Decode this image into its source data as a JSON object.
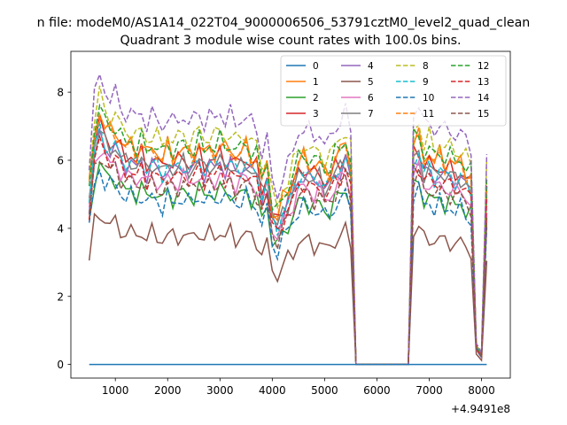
{
  "figure": {
    "suptitle": "n file: modeM0/AS1A14_022T04_9000006506_53791cztM0_level2_quad_clean",
    "title": "Quadrant 3 module wise count rates with 100.0s bins.",
    "x_offset_text": "+4.9491e8"
  },
  "chart_data": {
    "type": "line",
    "title": "Quadrant 3 module wise count rates with 100.0s bins.",
    "xlabel": "",
    "ylabel": "",
    "x_offset": 494910000,
    "xlim": [
      150,
      8550
    ],
    "ylim": [
      -0.4,
      9.2
    ],
    "xticks": [
      1000,
      2000,
      3000,
      4000,
      5000,
      6000,
      7000,
      8000
    ],
    "yticks": [
      0,
      2,
      4,
      6,
      8
    ],
    "grid": false,
    "legend": {
      "placement": "top-right",
      "columns": 4
    },
    "x": [
      500,
      600,
      700,
      800,
      900,
      1000,
      1100,
      1200,
      1300,
      1400,
      1500,
      1600,
      1700,
      1800,
      1900,
      2000,
      2100,
      2200,
      2300,
      2400,
      2500,
      2600,
      2700,
      2800,
      2900,
      3000,
      3100,
      3200,
      3300,
      3400,
      3500,
      3600,
      3700,
      3800,
      3900,
      4000,
      4100,
      4200,
      4300,
      4400,
      4500,
      4600,
      4700,
      4800,
      4900,
      5000,
      5100,
      5200,
      5300,
      5400,
      5500,
      5600,
      5700,
      5800,
      5900,
      6000,
      6100,
      6200,
      6300,
      6400,
      6500,
      6600,
      6700,
      6800,
      6900,
      7000,
      7100,
      7200,
      7300,
      7400,
      7500,
      7600,
      7700,
      7800,
      7900,
      8000,
      8100
    ],
    "base_profile": [
      4.8,
      6.3,
      6.9,
      6.5,
      6.3,
      6.4,
      6.1,
      5.9,
      6.0,
      5.8,
      6.0,
      5.7,
      5.9,
      5.8,
      5.6,
      5.9,
      5.7,
      5.8,
      5.9,
      5.7,
      5.8,
      6.0,
      5.7,
      5.9,
      5.8,
      6.0,
      5.8,
      5.9,
      5.7,
      5.8,
      5.9,
      5.7,
      5.6,
      5.0,
      5.4,
      4.3,
      4.0,
      4.5,
      4.7,
      5.1,
      5.5,
      5.6,
      5.5,
      5.4,
      5.5,
      5.2,
      5.3,
      5.6,
      5.8,
      6.0,
      5.5,
      0.0,
      0.0,
      0.0,
      0.0,
      0.0,
      0.0,
      0.0,
      0.0,
      0.0,
      0.0,
      0.0,
      6.0,
      6.2,
      5.6,
      5.8,
      5.5,
      5.7,
      5.5,
      5.6,
      5.4,
      5.5,
      5.3,
      5.1,
      0.5,
      0.25,
      5.0
    ],
    "series": [
      {
        "name": "0",
        "color": "#1f77b4",
        "dash": "solid",
        "scale": 0,
        "constant": 0.0
      },
      {
        "name": "1",
        "color": "#ff7f0e",
        "dash": "solid",
        "scale": 1.08
      },
      {
        "name": "2",
        "color": "#2ca02c",
        "dash": "solid",
        "scale": 0.86
      },
      {
        "name": "3",
        "color": "#d62728",
        "dash": "solid",
        "scale": 1.03
      },
      {
        "name": "4",
        "color": "#9467bd",
        "dash": "solid",
        "scale": 0.99
      },
      {
        "name": "5",
        "color": "#8c564b",
        "dash": "solid",
        "scale": 0.65
      },
      {
        "name": "6",
        "color": "#e377c2",
        "dash": "solid",
        "scale": 0.93
      },
      {
        "name": "7",
        "color": "#7f7f7f",
        "dash": "solid",
        "scale": 1.0
      },
      {
        "name": "8",
        "color": "#bcbd22",
        "dash": "dashed",
        "scale": 1.15
      },
      {
        "name": "9",
        "color": "#17becf",
        "dash": "dashed",
        "scale": 1.0
      },
      {
        "name": "10",
        "color": "#1f77b4",
        "dash": "dashed",
        "scale": 0.83
      },
      {
        "name": "11",
        "color": "#ff7f0e",
        "dash": "dashed",
        "scale": 1.07
      },
      {
        "name": "12",
        "color": "#2ca02c",
        "dash": "dashed",
        "scale": 1.1
      },
      {
        "name": "13",
        "color": "#d62728",
        "dash": "dashed",
        "scale": 0.95
      },
      {
        "name": "14",
        "color": "#9467bd",
        "dash": "dashed",
        "scale": 1.24
      },
      {
        "name": "15",
        "color": "#8c564b",
        "dash": "dashed",
        "scale": 0.9
      }
    ]
  }
}
